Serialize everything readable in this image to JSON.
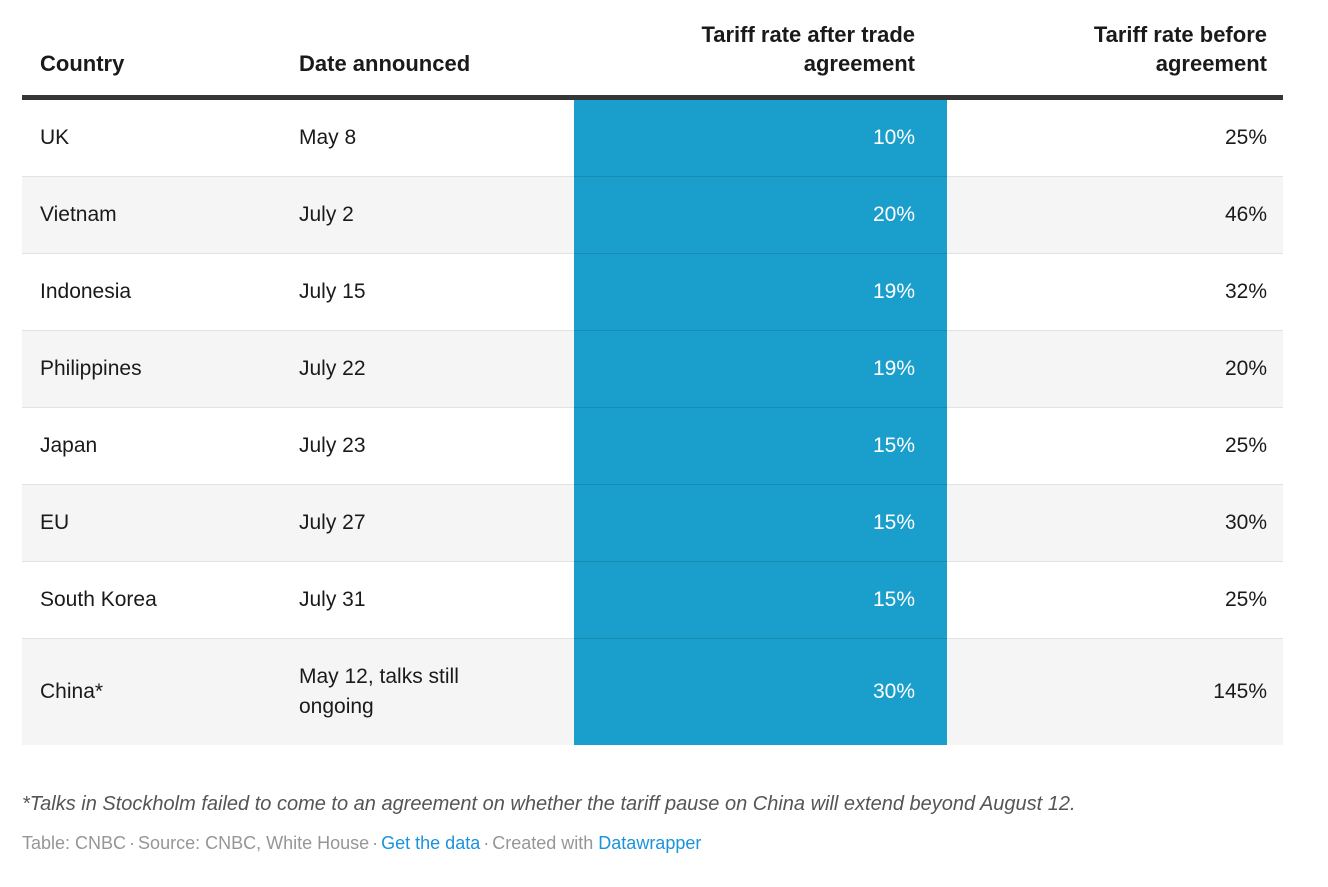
{
  "chart_data": {
    "type": "table",
    "title": "",
    "columns": [
      "Country",
      "Date announced",
      "Tariff rate after trade agreement",
      "Tariff rate before agreement"
    ],
    "highlighted_column": "Tariff rate after trade agreement",
    "rows": [
      {
        "country": "UK",
        "date_announced": "May 8",
        "tariff_after_pct": 10,
        "tariff_before_pct": 25
      },
      {
        "country": "Vietnam",
        "date_announced": "July 2",
        "tariff_after_pct": 20,
        "tariff_before_pct": 46
      },
      {
        "country": "Indonesia",
        "date_announced": "July 15",
        "tariff_after_pct": 19,
        "tariff_before_pct": 32
      },
      {
        "country": "Philippines",
        "date_announced": "July 22",
        "tariff_after_pct": 19,
        "tariff_before_pct": 20
      },
      {
        "country": "Japan",
        "date_announced": "July 23",
        "tariff_after_pct": 15,
        "tariff_before_pct": 25
      },
      {
        "country": "EU",
        "date_announced": "July 27",
        "tariff_after_pct": 15,
        "tariff_before_pct": 30
      },
      {
        "country": "South Korea",
        "date_announced": "July 31",
        "tariff_after_pct": 15,
        "tariff_before_pct": 25
      },
      {
        "country": "China*",
        "date_announced": "May 12, talks still ongoing",
        "tariff_after_pct": 30,
        "tariff_before_pct": 145
      }
    ]
  },
  "table": {
    "columns": [
      {
        "label": "Country"
      },
      {
        "label": "Date announced"
      },
      {
        "label": "Tariff rate after trade\nagreement"
      },
      {
        "label": "Tariff rate before\nagreement"
      }
    ],
    "rows": [
      {
        "country": "UK",
        "date": "May 8",
        "after": "10%",
        "before": "25%"
      },
      {
        "country": "Vietnam",
        "date": "July 2",
        "after": "20%",
        "before": "46%"
      },
      {
        "country": "Indonesia",
        "date": "July 15",
        "after": "19%",
        "before": "32%"
      },
      {
        "country": "Philippines",
        "date": "July 22",
        "after": "19%",
        "before": "20%"
      },
      {
        "country": "Japan",
        "date": "July 23",
        "after": "15%",
        "before": "25%"
      },
      {
        "country": "EU",
        "date": "July 27",
        "after": "15%",
        "before": "30%"
      },
      {
        "country": "South Korea",
        "date": "July 31",
        "after": "15%",
        "before": "25%"
      },
      {
        "country": "China*",
        "date": "May 12, talks still ongoing",
        "after": "30%",
        "before": "145%"
      }
    ]
  },
  "footnote": "*Talks in Stockholm failed to come to an agreement on whether the tariff pause on China will extend beyond August 12.",
  "footer": {
    "table_credit": "Table: CNBC",
    "separator": "·",
    "source_credit": "Source: CNBC, White House",
    "get_data_label": "Get the data",
    "created_with_label": "Created with",
    "datawrapper_label": "Datawrapper"
  },
  "colors": {
    "highlight_column_bg": "#1a9ecb",
    "highlight_column_text": "#ffffff",
    "header_rule": "#363636",
    "alt_row_bg": "#f5f5f5",
    "row_border": "#e2e2e2",
    "body_text": "#1a1a1a",
    "footnote_text": "#555555",
    "footer_text": "#969696",
    "link": "#1a93dc"
  }
}
